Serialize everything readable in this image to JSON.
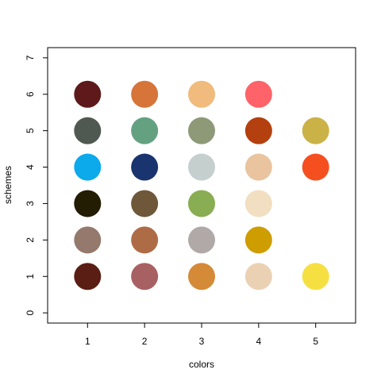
{
  "chart_data": {
    "type": "scatter",
    "title": "",
    "xlabel": "colors",
    "ylabel": "schemes",
    "xlim": [
      0.3,
      5.7
    ],
    "ylim": [
      -0.28,
      7.28
    ],
    "x_ticks": [
      1,
      2,
      3,
      4,
      5
    ],
    "y_ticks": [
      0,
      1,
      2,
      3,
      4,
      5,
      6,
      7
    ],
    "grid": false,
    "legend": "none",
    "schemes": [
      {
        "y": 1,
        "colors": [
          "#5A1E14",
          "#A86163",
          "#D48A37",
          "#EBD1B3",
          "#F6E041"
        ]
      },
      {
        "y": 2,
        "colors": [
          "#94796C",
          "#AE6C46",
          "#B0A9A8",
          "#CE9D00"
        ]
      },
      {
        "y": 3,
        "colors": [
          "#221D03",
          "#6E5839",
          "#89AD52",
          "#F2DEC0"
        ]
      },
      {
        "y": 4,
        "colors": [
          "#0CA9EB",
          "#19346E",
          "#C4CFCE",
          "#E9C49F",
          "#F54F1F"
        ]
      },
      {
        "y": 5,
        "colors": [
          "#4F5851",
          "#64A181",
          "#8E9A77",
          "#B3400E",
          "#CBB247"
        ]
      },
      {
        "y": 6,
        "colors": [
          "#5E1A1A",
          "#D6743A",
          "#F0BB7D",
          "#FE6369"
        ]
      }
    ]
  }
}
